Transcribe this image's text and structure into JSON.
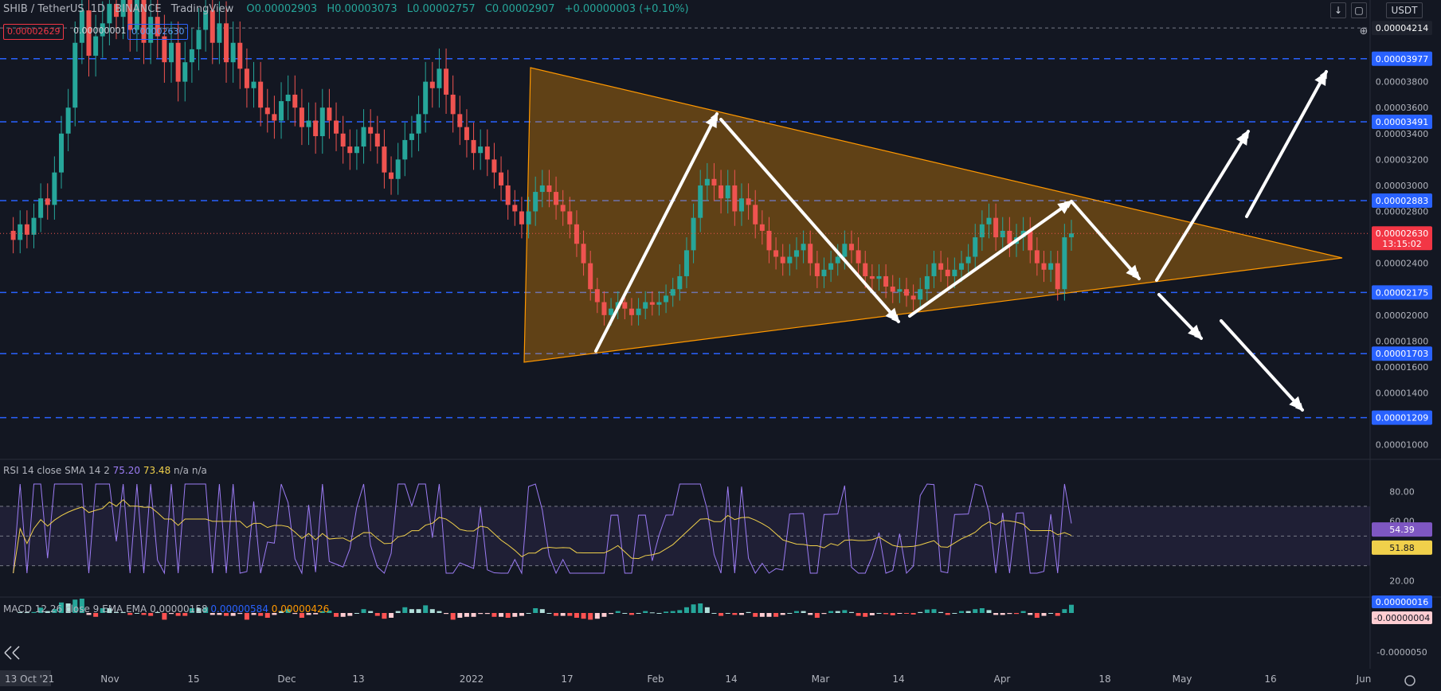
{
  "header": {
    "symbol": "SHIB / TetherUS",
    "interval": "1D",
    "exchange": "BINANCE",
    "platform": "TradingView",
    "open": "O0.00002903",
    "high": "H0.00003073",
    "low": "L0.00002757",
    "close": "C0.00002907",
    "change": "+0.00000003 (+0.10%)"
  },
  "price_boxes": {
    "sell": "0.00002629",
    "spread": "0.00000001",
    "buy": "0.00002630"
  },
  "toolbar": {
    "currency": "USDT",
    "download_icon": "arrow-down-icon",
    "layout_icon": "square-icon"
  },
  "chart_data": {
    "type": "candlestick",
    "price_axis": {
      "ticks": [
        "0.00001000",
        "0.00001200",
        "0.00001400",
        "0.00001600",
        "0.00001800",
        "0.00002000",
        "0.00002200",
        "0.00002400",
        "0.00002600",
        "0.00002800",
        "0.00003000",
        "0.00003200",
        "0.00003400",
        "0.00003600",
        "0.00003800"
      ],
      "range": [
        9e-06,
        4.43e-05
      ]
    },
    "levels": [
      {
        "price": "0.00004214",
        "style": "dashed-grey"
      },
      {
        "price": "0.00003977",
        "style": "dashed-blue"
      },
      {
        "price": "0.00003491",
        "style": "dashed-blue"
      },
      {
        "price": "0.00002883",
        "style": "dashed-blue"
      },
      {
        "price": "0.00002175",
        "style": "dashed-blue"
      },
      {
        "price": "0.00001703",
        "style": "dashed-blue"
      },
      {
        "price": "0.00001209",
        "style": "dashed-blue"
      }
    ],
    "last_price": {
      "price": "0.00002630",
      "countdown": "13:15:02"
    },
    "x_axis": [
      "13 Oct '21",
      "Nov",
      "15",
      "Dec",
      "13",
      "2022",
      "17",
      "Feb",
      "14",
      "Mar",
      "14",
      "Apr",
      "18",
      "May",
      "16",
      "Jun"
    ],
    "close_series": [
      2.65e-05,
      2.58e-05,
      2.7e-05,
      2.62e-05,
      2.75e-05,
      2.9e-05,
      2.85e-05,
      3.1e-05,
      3.4e-05,
      3.6e-05,
      4.1e-05,
      4.35e-05,
      4e-05,
      4.15e-05,
      4.25e-05,
      4.4e-05,
      4.3e-05,
      4.45e-05,
      4.2e-05,
      4.45e-05,
      4.1e-05,
      4.3e-05,
      4.15e-05,
      3.95e-05,
      4.1e-05,
      3.8e-05,
      3.95e-05,
      4.05e-05,
      4.2e-05,
      4.35e-05,
      4.1e-05,
      4.25e-05,
      3.95e-05,
      4.1e-05,
      3.9e-05,
      3.75e-05,
      3.8e-05,
      3.6e-05,
      3.55e-05,
      3.5e-05,
      3.65e-05,
      3.7e-05,
      3.6e-05,
      3.45e-05,
      3.5e-05,
      3.38e-05,
      3.6e-05,
      3.5e-05,
      3.4e-05,
      3.3e-05,
      3.25e-05,
      3.3e-05,
      3.45e-05,
      3.4e-05,
      3.3e-05,
      3.1e-05,
      3.05e-05,
      3.2e-05,
      3.35e-05,
      3.4e-05,
      3.55e-05,
      3.8e-05,
      3.75e-05,
      3.9e-05,
      3.7e-05,
      3.55e-05,
      3.45e-05,
      3.35e-05,
      3.25e-05,
      3.3e-05,
      3.2e-05,
      3.1e-05,
      3e-05,
      2.85e-05,
      2.8e-05,
      2.7e-05,
      2.8e-05,
      2.95e-05,
      3e-05,
      2.95e-05,
      2.85e-05,
      2.8e-05,
      2.7e-05,
      2.55e-05,
      2.4e-05,
      2.2e-05,
      2.1e-05,
      2e-05,
      2.05e-05,
      2.1e-05,
      2.05e-05,
      2e-05,
      2.05e-05,
      2.1e-05,
      2.08e-05,
      2.1e-05,
      2.15e-05,
      2.2e-05,
      2.3e-05,
      2.5e-05,
      2.75e-05,
      3e-05,
      3.05e-05,
      3e-05,
      2.9e-05,
      3e-05,
      2.8e-05,
      2.9e-05,
      2.85e-05,
      2.7e-05,
      2.65e-05,
      2.5e-05,
      2.45e-05,
      2.4e-05,
      2.45e-05,
      2.5e-05,
      2.55e-05,
      2.4e-05,
      2.3e-05,
      2.35e-05,
      2.4e-05,
      2.45e-05,
      2.55e-05,
      2.5e-05,
      2.4e-05,
      2.3e-05,
      2.28e-05,
      2.3e-05,
      2.22e-05,
      2.18e-05,
      2.2e-05,
      2.15e-05,
      2.12e-05,
      2.2e-05,
      2.3e-05,
      2.4e-05,
      2.35e-05,
      2.3e-05,
      2.35e-05,
      2.4e-05,
      2.45e-05,
      2.6e-05,
      2.7e-05,
      2.75e-05,
      2.6e-05,
      2.65e-05,
      2.55e-05,
      2.6e-05,
      2.65e-05,
      2.5e-05,
      2.4e-05,
      2.35e-05,
      2.4e-05,
      2.2e-05,
      2.6e-05,
      2.63e-05
    ],
    "pattern": "symmetrical-triangle",
    "rsi": {
      "label": "RSI 14 close SMA 14 2",
      "rsi": "75.20",
      "sma": "73.48",
      "extra": "n/a n/a",
      "axis": [
        "80.00",
        "60.00",
        "40.00",
        "20.00"
      ],
      "rsi_last": "54.39",
      "sma_last": "51.88",
      "upper": 70,
      "lower": 30
    },
    "macd": {
      "label": "MACD 12 26 close 9 EMA EMA",
      "hist": "0.00000158",
      "macd": "0.00000584",
      "signal": "0.00000426",
      "axis_top": "0.00000016",
      "axis_neg": "-0.00000004",
      "axis_low": "-0.0000050"
    }
  }
}
